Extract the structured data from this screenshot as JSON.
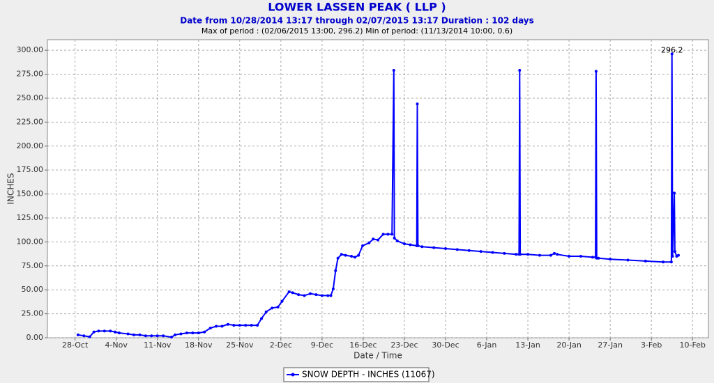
{
  "chart_data": {
    "type": "line",
    "title": "LOWER LASSEN PEAK ( LLP )",
    "subtitle": "Date from 10/28/2014 13:17 through 02/07/2015 13:17 Duration : 102 days",
    "period_note": "Max of period : (02/06/2015 13:00, 296.2)  Min of period: (11/13/2014 10:00,  0.6)",
    "x_label": "Date / Time",
    "y_label": "INCHES",
    "max_label": "296.2",
    "grid": true,
    "xlim": [
      -4.7,
      107.7
    ],
    "ylim": [
      0,
      311
    ],
    "xticks": [
      {
        "value": 0,
        "label": "28-Oct"
      },
      {
        "value": 7,
        "label": "4-Nov"
      },
      {
        "value": 14,
        "label": "11-Nov"
      },
      {
        "value": 21,
        "label": "18-Nov"
      },
      {
        "value": 28,
        "label": "25-Nov"
      },
      {
        "value": 35,
        "label": "2-Dec"
      },
      {
        "value": 42,
        "label": "9-Dec"
      },
      {
        "value": 49,
        "label": "16-Dec"
      },
      {
        "value": 56,
        "label": "23-Dec"
      },
      {
        "value": 63,
        "label": "30-Dec"
      },
      {
        "value": 70,
        "label": "6-Jan"
      },
      {
        "value": 77,
        "label": "13-Jan"
      },
      {
        "value": 84,
        "label": "20-Jan"
      },
      {
        "value": 91,
        "label": "27-Jan"
      },
      {
        "value": 98,
        "label": "3-Feb"
      },
      {
        "value": 105,
        "label": "10-Feb"
      }
    ],
    "yticks": [
      {
        "value": 0,
        "label": "0.00"
      },
      {
        "value": 25,
        "label": "25.00"
      },
      {
        "value": 50,
        "label": "50.00"
      },
      {
        "value": 75,
        "label": "75.00"
      },
      {
        "value": 100,
        "label": "100.00"
      },
      {
        "value": 125,
        "label": "125.00"
      },
      {
        "value": 150,
        "label": "150.00"
      },
      {
        "value": 175,
        "label": "175.00"
      },
      {
        "value": 200,
        "label": "200.00"
      },
      {
        "value": 225,
        "label": "225.00"
      },
      {
        "value": 250,
        "label": "250.00"
      },
      {
        "value": 275,
        "label": "275.00"
      },
      {
        "value": 300,
        "label": "300.00"
      }
    ],
    "series": [
      {
        "name": "SNOW DEPTH - INCHES (11067)",
        "color": "#0000ff",
        "x": [
          0.5,
          1.5,
          2.5,
          3.2,
          4,
          5,
          6,
          6.8,
          7.5,
          9,
          10,
          11,
          12,
          13,
          14,
          15,
          16.4,
          17,
          18,
          19,
          20,
          21,
          22,
          23,
          24,
          25,
          26,
          27,
          28,
          29,
          30,
          31,
          31.7,
          32.5,
          33.5,
          34.5,
          35.2,
          36.4,
          37,
          38,
          39,
          40,
          41,
          42,
          43,
          43.5,
          43.9,
          44.3,
          44.7,
          45.3,
          46,
          47,
          47.6,
          48.2,
          48.9,
          50,
          50.7,
          51.5,
          52.4,
          53.2,
          53.9,
          54.2,
          54.3,
          54.8,
          56,
          57,
          58.1,
          58.2,
          58.3,
          59,
          61,
          63,
          65,
          67,
          69,
          71,
          73,
          75,
          75.5,
          75.6,
          75.7,
          77,
          79,
          80.9,
          81.5,
          82,
          84,
          86,
          88,
          88.5,
          88.6,
          88.7,
          89,
          91,
          94,
          97,
          100,
          101.4,
          101.5,
          101.6,
          101.9,
          102,
          102.3,
          102.6
        ],
        "values": [
          3,
          2,
          1,
          6,
          7,
          7,
          7,
          6,
          5,
          4,
          3,
          3,
          2,
          2,
          2,
          2,
          0.6,
          3,
          4,
          5,
          5,
          5,
          6,
          10,
          12,
          12,
          14,
          13,
          13,
          13,
          13,
          13,
          20,
          27,
          31,
          32,
          38,
          48,
          47,
          45,
          44,
          46,
          45,
          44,
          44,
          44,
          51,
          70,
          83,
          87,
          86,
          85,
          84,
          86,
          96,
          99,
          103,
          102,
          108,
          108,
          108,
          279,
          104,
          101,
          98,
          97,
          96,
          244,
          96,
          95,
          94,
          93,
          92,
          91,
          90,
          89,
          88,
          87,
          87,
          279,
          87,
          87,
          86,
          86,
          88,
          87,
          85,
          85,
          84,
          84,
          278,
          83,
          83,
          82,
          81,
          80,
          79,
          79,
          296.2,
          85,
          151,
          90,
          85,
          86
        ]
      }
    ]
  }
}
